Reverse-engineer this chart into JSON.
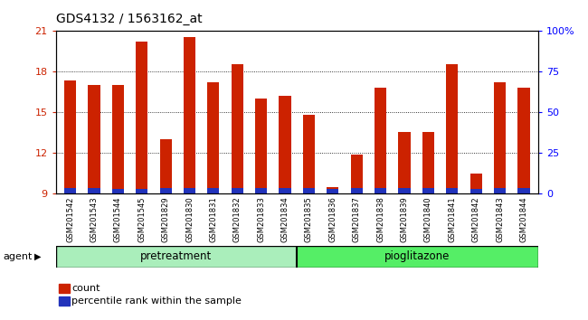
{
  "title": "GDS4132 / 1563162_at",
  "categories": [
    "GSM201542",
    "GSM201543",
    "GSM201544",
    "GSM201545",
    "GSM201829",
    "GSM201830",
    "GSM201831",
    "GSM201832",
    "GSM201833",
    "GSM201834",
    "GSM201835",
    "GSM201836",
    "GSM201837",
    "GSM201838",
    "GSM201839",
    "GSM201840",
    "GSM201841",
    "GSM201842",
    "GSM201843",
    "GSM201844"
  ],
  "count_values": [
    17.3,
    17.0,
    17.0,
    20.2,
    13.0,
    20.5,
    17.2,
    18.5,
    16.0,
    16.2,
    14.8,
    9.5,
    11.9,
    16.8,
    13.5,
    13.5,
    18.5,
    10.5,
    17.2,
    16.8
  ],
  "percentile_heights": [
    0.42,
    0.42,
    0.36,
    0.36,
    0.38,
    0.42,
    0.42,
    0.42,
    0.42,
    0.42,
    0.42,
    0.32,
    0.42,
    0.42,
    0.42,
    0.42,
    0.42,
    0.36,
    0.42,
    0.42
  ],
  "bar_bottom": 9.0,
  "ylim_left": [
    9,
    21
  ],
  "ylim_right": [
    0,
    100
  ],
  "yticks_left": [
    9,
    12,
    15,
    18,
    21
  ],
  "yticks_right": [
    0,
    25,
    50,
    75,
    100
  ],
  "ytick_right_labels": [
    "0",
    "25",
    "50",
    "75",
    "100%"
  ],
  "count_color": "#CC2200",
  "percentile_color": "#2233BB",
  "pretreatment_indices": [
    0,
    9
  ],
  "pioglitazone_indices": [
    10,
    19
  ],
  "group_label_pretreatment": "pretreatment",
  "group_label_pioglitazone": "pioglitazone",
  "group_color_pretreatment": "#AAEEBB",
  "group_color_pioglitazone": "#55EE66",
  "agent_label": "agent",
  "legend_count": "count",
  "legend_percentile": "percentile rank within the sample",
  "plot_bg_color": "#FFFFFF",
  "xtick_bg_color": "#C8C8C8",
  "title_fontsize": 10,
  "bar_width": 0.5
}
